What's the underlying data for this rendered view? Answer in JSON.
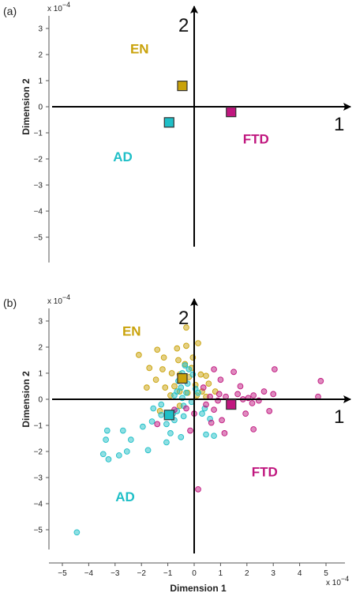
{
  "panels": [
    {
      "label": "(a)",
      "ylabel": "Dimension 2",
      "y_multiplier": "x 10",
      "exponent": "−4",
      "axis_labels": {
        "x": "1",
        "y": "2"
      }
    },
    {
      "label": "(b)",
      "xlabel": "Dimension 1",
      "ylabel": "Dimension 2",
      "y_multiplier": "x 10",
      "x_multiplier": "x 10",
      "exponent": "−4",
      "axis_labels": {
        "x": "1",
        "y": "2"
      }
    }
  ],
  "colors": {
    "EN": "#c9a20a",
    "AD": "#1fbfc7",
    "FTD": "#c0177f"
  },
  "chart_data": [
    {
      "type": "scatter",
      "title": "",
      "xlabel": "",
      "ylabel": "Dimension 2",
      "ylim": [
        -5.5,
        3.5
      ],
      "yticks": [
        -5,
        -4,
        -3,
        -2,
        -1,
        0,
        1,
        2,
        3
      ],
      "series": [
        {
          "name": "EN",
          "points": [
            [
              -0.45,
              0.8
            ]
          ]
        },
        {
          "name": "AD",
          "points": [
            [
              -0.95,
              -0.6
            ]
          ]
        },
        {
          "name": "FTD",
          "points": [
            [
              1.4,
              -0.2
            ]
          ]
        }
      ]
    },
    {
      "type": "scatter",
      "title": "",
      "xlabel": "Dimension 1",
      "ylabel": "Dimension 2",
      "xlim": [
        -5.5,
        5.5
      ],
      "ylim": [
        -5.5,
        3.5
      ],
      "xticks": [
        -5,
        -4,
        -3,
        -2,
        -1,
        0,
        1,
        2,
        3,
        4,
        5
      ],
      "yticks": [
        -5,
        -4,
        -3,
        -2,
        -1,
        0,
        1,
        2,
        3
      ],
      "centroids": [
        {
          "name": "EN",
          "x": -0.45,
          "y": 0.8
        },
        {
          "name": "AD",
          "x": -0.95,
          "y": -0.6
        },
        {
          "name": "FTD",
          "x": 1.4,
          "y": -0.2
        }
      ],
      "series": [
        {
          "name": "EN",
          "points": [
            [
              -0.3,
              2.75
            ],
            [
              0.15,
              2.15
            ],
            [
              -0.3,
              2.05
            ],
            [
              -0.65,
              1.95
            ],
            [
              -1.4,
              1.9
            ],
            [
              -1.15,
              1.6
            ],
            [
              -2.1,
              1.7
            ],
            [
              -0.05,
              1.6
            ],
            [
              -0.6,
              1.5
            ],
            [
              -0.35,
              1.35
            ],
            [
              -0.1,
              1.2
            ],
            [
              -1.7,
              1.2
            ],
            [
              -1.2,
              1.15
            ],
            [
              -0.85,
              1.0
            ],
            [
              -0.55,
              0.95
            ],
            [
              -0.2,
              0.85
            ],
            [
              0.25,
              0.95
            ],
            [
              0.45,
              0.9
            ],
            [
              -0.4,
              0.75
            ],
            [
              -1.45,
              0.75
            ],
            [
              0.55,
              0.6
            ],
            [
              0.05,
              0.55
            ],
            [
              -0.75,
              0.5
            ],
            [
              -1.1,
              0.45
            ],
            [
              -1.8,
              0.45
            ],
            [
              -0.55,
              0.3
            ],
            [
              0.3,
              0.3
            ],
            [
              0.8,
              0.3
            ],
            [
              -0.25,
              0.25
            ],
            [
              0.1,
              0.15
            ],
            [
              -0.9,
              0.15
            ],
            [
              0.45,
              0.1
            ],
            [
              -0.55,
              -0.25
            ],
            [
              -1.3,
              -0.45
            ]
          ]
        },
        {
          "name": "AD",
          "points": [
            [
              -0.35,
              1.3
            ],
            [
              -0.2,
              1.15
            ],
            [
              -0.45,
              1.0
            ],
            [
              -0.05,
              0.95
            ],
            [
              -0.6,
              0.7
            ],
            [
              -0.25,
              0.6
            ],
            [
              -0.5,
              0.45
            ],
            [
              0.05,
              0.4
            ],
            [
              -0.65,
              0.3
            ],
            [
              -0.3,
              0.25
            ],
            [
              0.15,
              0.25
            ],
            [
              -0.75,
              0.15
            ],
            [
              -0.45,
              0.05
            ],
            [
              -0.1,
              -0.1
            ],
            [
              -1.25,
              -0.2
            ],
            [
              -0.4,
              -0.25
            ],
            [
              -1.55,
              -0.35
            ],
            [
              0.4,
              -0.35
            ],
            [
              -0.65,
              -0.45
            ],
            [
              -0.8,
              -0.55
            ],
            [
              -1.25,
              -0.6
            ],
            [
              0.3,
              -0.55
            ],
            [
              -0.4,
              -0.65
            ],
            [
              -0.75,
              -0.8
            ],
            [
              0.6,
              -0.75
            ],
            [
              -1.05,
              -0.95
            ],
            [
              -1.6,
              -0.85
            ],
            [
              -1.95,
              -1.05
            ],
            [
              -0.9,
              -1.3
            ],
            [
              -0.5,
              -1.45
            ],
            [
              0.45,
              -1.35
            ],
            [
              0.75,
              -1.4
            ],
            [
              -2.7,
              -1.2
            ],
            [
              -2.4,
              -1.55
            ],
            [
              -3.3,
              -1.2
            ],
            [
              -1.75,
              -1.95
            ],
            [
              -3.35,
              -1.55
            ],
            [
              -2.55,
              -2.0
            ],
            [
              -2.85,
              -2.15
            ],
            [
              -3.45,
              -2.1
            ],
            [
              -3.25,
              -2.3
            ],
            [
              -1.05,
              -1.65
            ],
            [
              -4.45,
              -5.1
            ]
          ]
        },
        {
          "name": "FTD",
          "points": [
            [
              0.75,
              1.15
            ],
            [
              1.0,
              0.75
            ],
            [
              1.5,
              1.05
            ],
            [
              3.05,
              1.15
            ],
            [
              4.8,
              0.7
            ],
            [
              4.7,
              0.1
            ],
            [
              1.75,
              0.5
            ],
            [
              0.95,
              0.2
            ],
            [
              1.65,
              0.2
            ],
            [
              2.65,
              0.3
            ],
            [
              3.0,
              0.2
            ],
            [
              2.25,
              0.15
            ],
            [
              2.05,
              0.05
            ],
            [
              2.45,
              -0.05
            ],
            [
              1.85,
              0.0
            ],
            [
              1.2,
              0.1
            ],
            [
              0.9,
              -0.05
            ],
            [
              0.6,
              0.1
            ],
            [
              0.35,
              0.45
            ],
            [
              0.45,
              -0.2
            ],
            [
              0.75,
              -0.4
            ],
            [
              0.0,
              -0.55
            ],
            [
              -0.3,
              -0.35
            ],
            [
              0.65,
              -0.9
            ],
            [
              1.05,
              -0.8
            ],
            [
              2.2,
              -0.15
            ],
            [
              2.85,
              -0.45
            ],
            [
              1.95,
              -0.55
            ],
            [
              2.25,
              -1.15
            ],
            [
              -0.75,
              -0.4
            ],
            [
              -1.4,
              -0.95
            ],
            [
              1.15,
              -1.3
            ],
            [
              -0.15,
              -1.2
            ],
            [
              0.15,
              -3.45
            ]
          ]
        }
      ]
    }
  ]
}
